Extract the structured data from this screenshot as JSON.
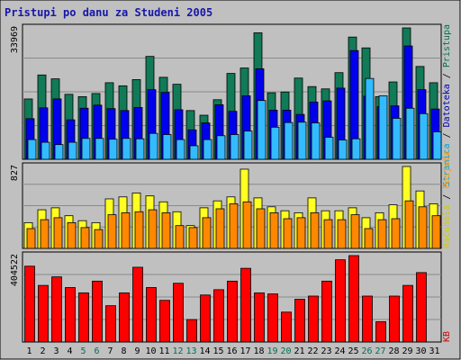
{
  "chart_data": {
    "type": "bar",
    "title": "Pristupi po danu za Studeni 2005",
    "categories": [
      "1",
      "2",
      "3",
      "4",
      "5",
      "6",
      "7",
      "8",
      "9",
      "10",
      "11",
      "12",
      "13",
      "14",
      "15",
      "16",
      "17",
      "18",
      "19",
      "20",
      "21",
      "22",
      "23",
      "24",
      "25",
      "26",
      "27",
      "28",
      "29",
      "30",
      "31"
    ],
    "weekend_categories": [
      "5",
      "6",
      "12",
      "13",
      "19",
      "20",
      "26",
      "27"
    ],
    "panels": [
      {
        "ymax_label": "33969",
        "ymax": 33969,
        "legend": [
          {
            "text": "Pristupa",
            "color": "#006f4f"
          },
          {
            "text": "Datoteka",
            "color": "#0000aa"
          },
          {
            "text": "Stranica",
            "color": "#00a0d0"
          }
        ],
        "series": [
          {
            "name": "Pristupa",
            "color": "#117a57",
            "values": [
              15600,
              21800,
              20800,
              16800,
              16200,
              17000,
              19800,
              19000,
              20600,
              26600,
              21200,
              19400,
              12600,
              11400,
              15400,
              22200,
              23600,
              32700,
              17200,
              17400,
              21000,
              18800,
              18200,
              22400,
              31600,
              28800,
              16200,
              20000,
              33969,
              24000,
              19800
            ]
          },
          {
            "name": "Datoteka",
            "color": "#0000ee",
            "values": [
              10500,
              13300,
              15600,
              10200,
              13200,
              14000,
              13100,
              12600,
              13400,
              18000,
              17300,
              12800,
              7600,
              9400,
              14100,
              12400,
              16400,
              23400,
              12700,
              12700,
              11600,
              14800,
              15100,
              18400,
              28100,
              16300,
              13600,
              13800,
              29300,
              18000,
              13000
            ]
          },
          {
            "name": "Stranica",
            "color": "#33bbff",
            "values": [
              5100,
              4400,
              3800,
              4400,
              5400,
              5400,
              5200,
              5400,
              5300,
              6700,
              6400,
              5100,
              3500,
              5100,
              6100,
              6400,
              7300,
              15200,
              8300,
              9500,
              9600,
              9400,
              5700,
              5000,
              5300,
              20900,
              16400,
              10600,
              13200,
              11800,
              7100
            ]
          }
        ]
      },
      {
        "ymax_label": "827",
        "ymax": 827,
        "legend": [
          {
            "text": "Računala",
            "color": "#cccc00"
          },
          {
            "text": "Posjeta",
            "color": "#ff9900"
          }
        ],
        "series": [
          {
            "name": "Računala",
            "color": "#ffff22",
            "values": [
              260,
              390,
              410,
              330,
              280,
              260,
              500,
              520,
              560,
              530,
              470,
              370,
              230,
              410,
              480,
              520,
              800,
              510,
              420,
              380,
              360,
              510,
              380,
              380,
              410,
              310,
              360,
              440,
              827,
              580,
              450
            ]
          },
          {
            "name": "Posjeta",
            "color": "#ff8800",
            "values": [
              200,
              290,
              310,
              260,
              210,
              190,
              340,
              360,
              370,
              390,
              360,
              230,
              210,
              310,
              400,
              450,
              470,
              400,
              360,
              300,
              310,
              360,
              290,
              290,
              340,
              200,
              290,
              300,
              480,
              420,
              330
            ]
          }
        ]
      },
      {
        "ymax_label": "404522",
        "ymax": 404522,
        "legend": [
          {
            "text": "KB",
            "color": "#cc0000"
          }
        ],
        "series": [
          {
            "name": "KB",
            "color": "#ff0000",
            "values": [
              355000,
              265000,
              305000,
              255000,
              230000,
              285000,
              170000,
              230000,
              350000,
              255000,
              195000,
              275000,
              105000,
              220000,
              245000,
              285000,
              345000,
              230000,
              225000,
              140000,
              200000,
              215000,
              285000,
              385000,
              404522,
              215000,
              95000,
              215000,
              265000,
              325000,
              0
            ]
          }
        ]
      }
    ]
  }
}
